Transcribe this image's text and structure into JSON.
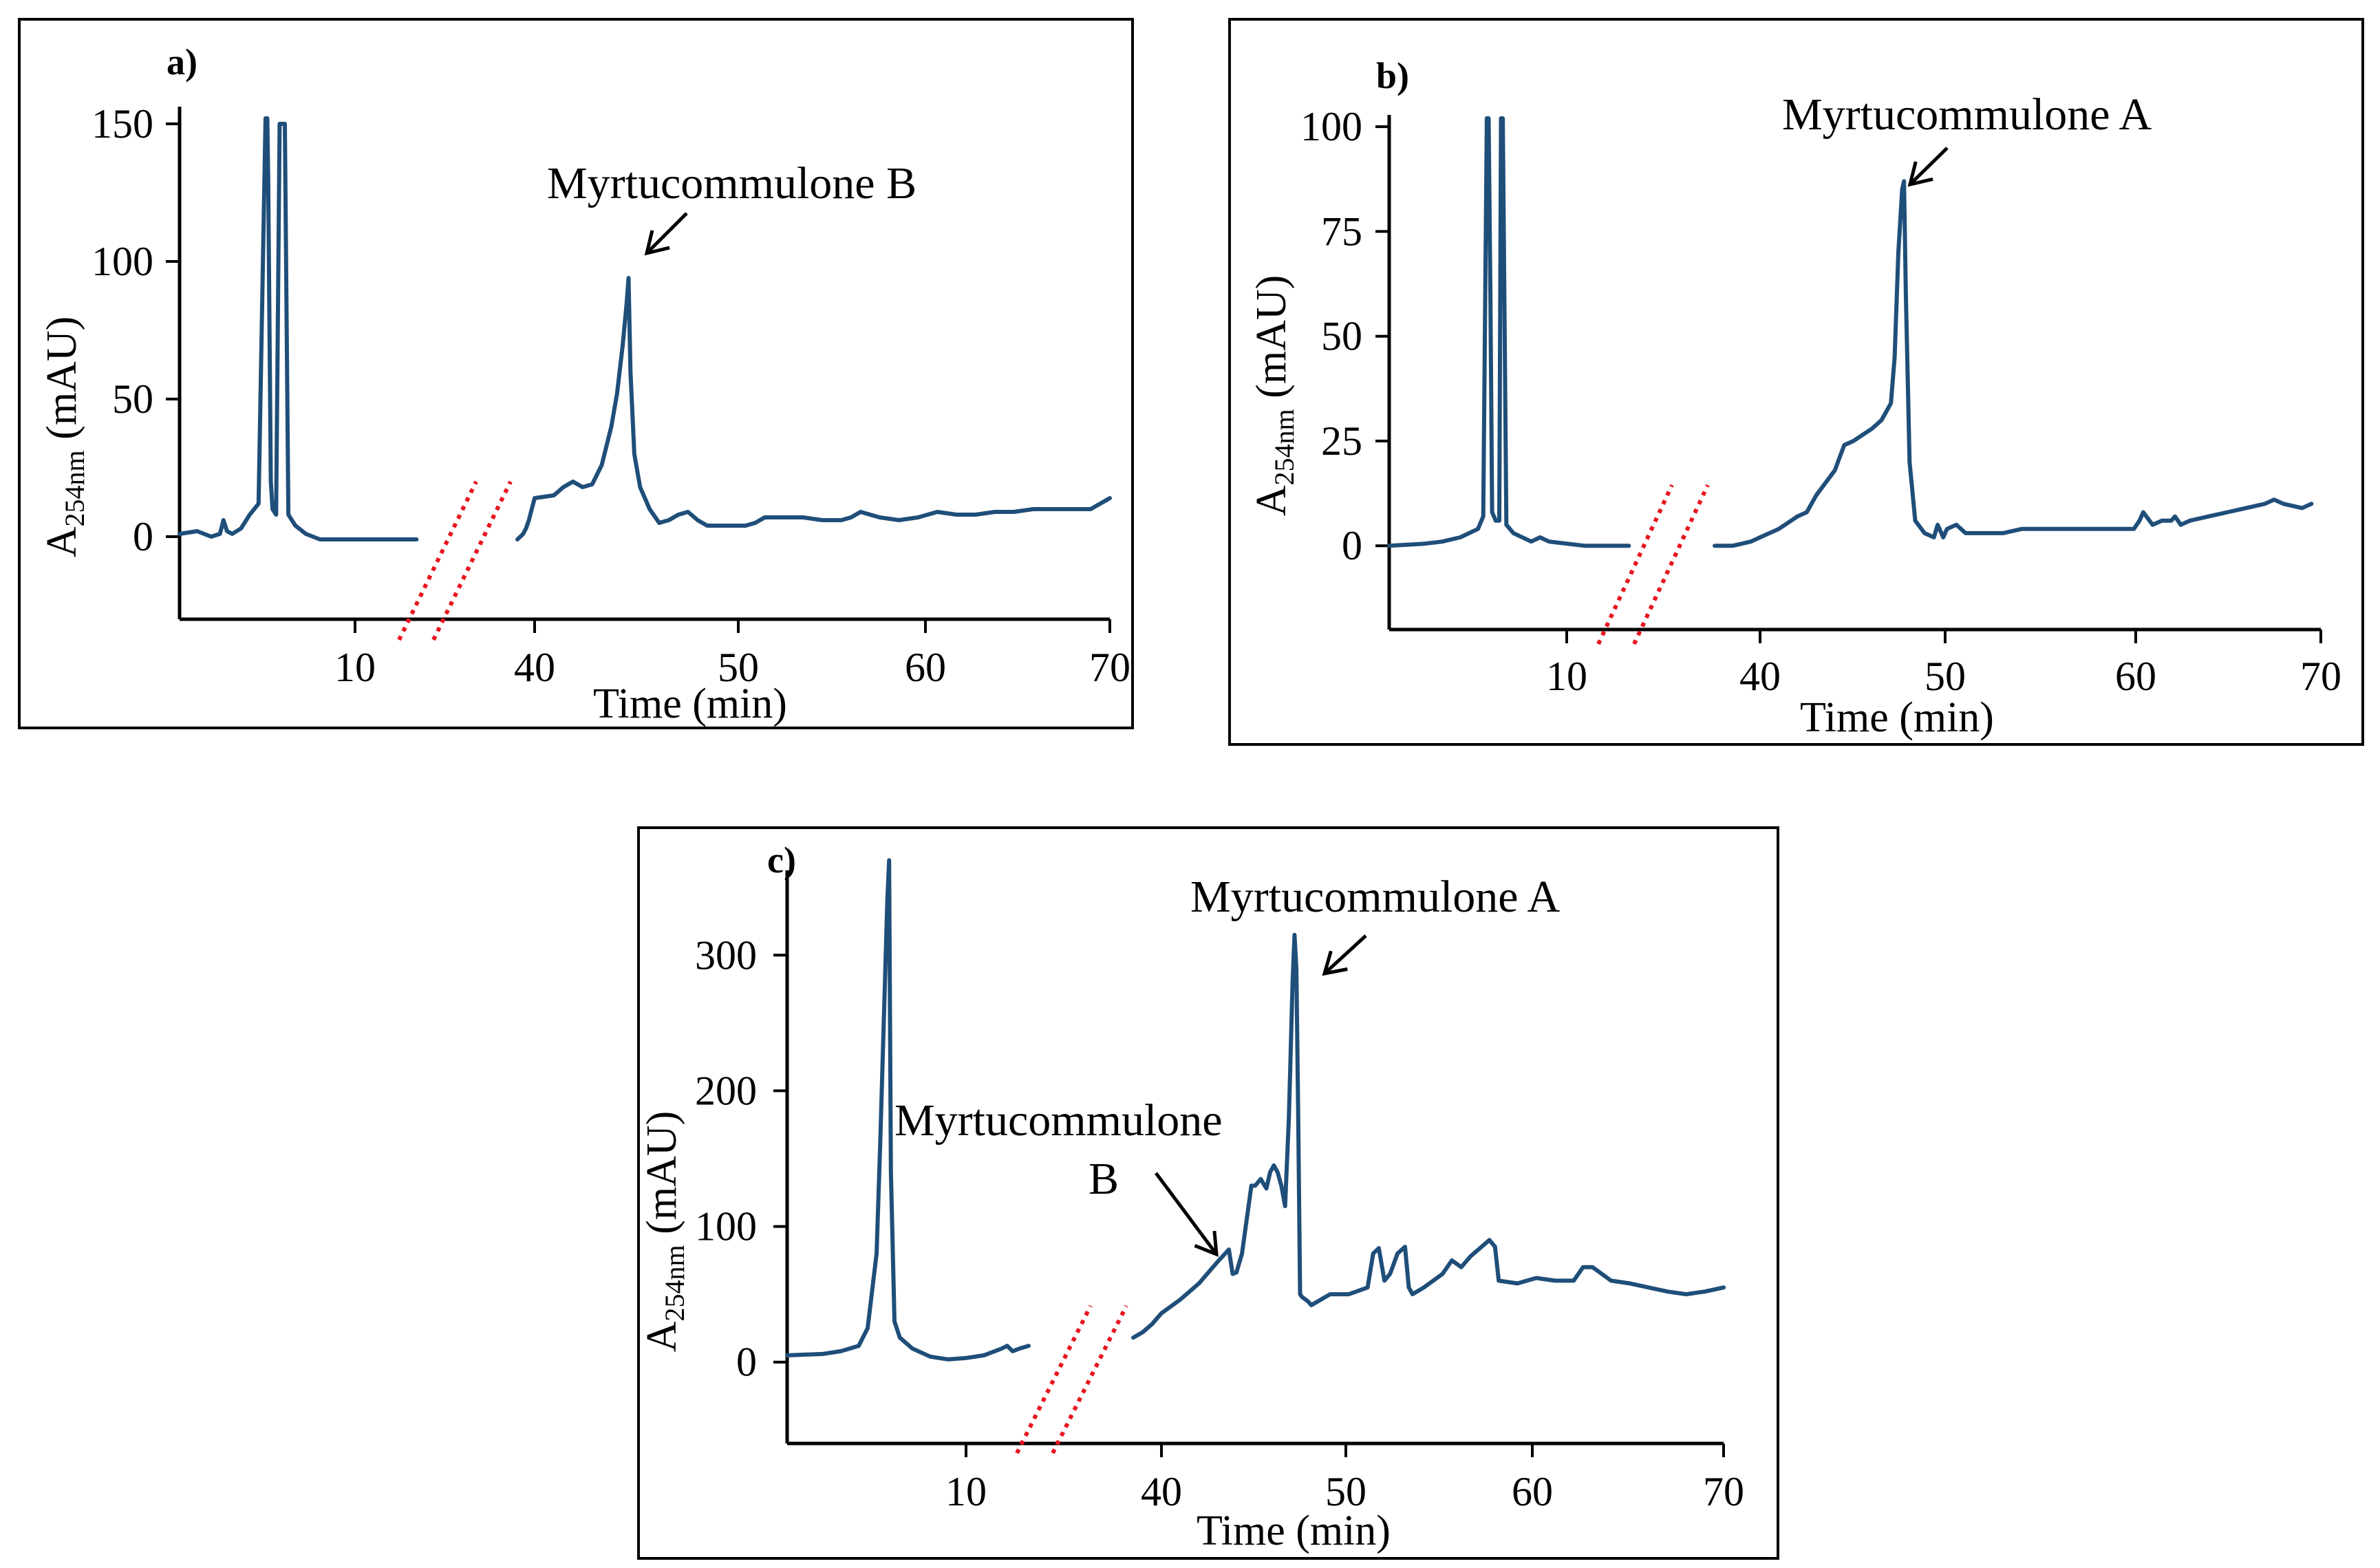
{
  "chart_data": [
    {
      "type": "line",
      "panel_label": "a)",
      "xlabel": "Time (min)",
      "ylabel_prefix": "A",
      "ylabel_sub": "254nm",
      "ylabel_suffix": " (mAU)",
      "x_ticks": [
        "10",
        "40",
        "50",
        "60",
        "70"
      ],
      "y_ticks": [
        0,
        50,
        100,
        150
      ],
      "ylim": [
        -30,
        155
      ],
      "axis_break": "between 10 and 40 min",
      "annotations": [
        {
          "text": "Myrtucommulone B",
          "x": 44.9,
          "y": 94
        }
      ],
      "series": [
        {
          "name": "chromatogram",
          "segment_early": {
            "x": [
              0,
              1,
              1.8,
              2.3,
              2.5,
              2.7,
              3,
              3.5,
              4,
              4.5,
              4.9,
              5.0,
              5.05,
              5.2,
              5.3,
              5.5,
              5.7,
              5.8,
              6.0,
              6.2,
              6.6,
              7.2,
              8,
              9,
              10,
              11,
              12,
              13,
              13.5
            ],
            "y": [
              1,
              2,
              0,
              1,
              6,
              2,
              1,
              3,
              8,
              12,
              152,
              152,
              130,
              20,
              10,
              8,
              150,
              150,
              150,
              8,
              4,
              1,
              -1,
              -1,
              -1,
              -1,
              -1,
              -1,
              -1
            ]
          },
          "segment_late": {
            "x": [
              34,
              35,
              36,
              37,
              38,
              39,
              40,
              41,
              41.5,
              42,
              42.5,
              43,
              43.5,
              44,
              44.3,
              44.6,
              44.8,
              44.9,
              45.0,
              45.2,
              45.5,
              46,
              46.5,
              47,
              47.5,
              48,
              48.5,
              49,
              50,
              51,
              51.5,
              52,
              53,
              54,
              55,
              56,
              56.5,
              57,
              58,
              59,
              60,
              61,
              62,
              63,
              64,
              65,
              66,
              67,
              68,
              69,
              70
            ],
            "y": [
              -1,
              0,
              1,
              3,
              6,
              10,
              14,
              15,
              18,
              20,
              18,
              19,
              26,
              40,
              52,
              70,
              85,
              94,
              60,
              30,
              18,
              10,
              5,
              6,
              8,
              9,
              6,
              4,
              4,
              4,
              5,
              7,
              7,
              7,
              6,
              6,
              7,
              9,
              7,
              6,
              7,
              9,
              8,
              8,
              9,
              9,
              10,
              10,
              10,
              10,
              14
            ]
          }
        }
      ]
    },
    {
      "type": "line",
      "panel_label": "b)",
      "xlabel": "Time (min)",
      "ylabel_prefix": "A",
      "ylabel_sub": "254nm",
      "ylabel_suffix": " (mAU)",
      "x_ticks": [
        "10",
        "40",
        "50",
        "60",
        "70"
      ],
      "y_ticks": [
        0,
        25,
        50,
        75,
        100
      ],
      "ylim": [
        -20,
        102
      ],
      "axis_break": "between 10 and 40 min",
      "annotations": [
        {
          "text": "Myrtucommulone A",
          "x": 47.7,
          "y": 87
        }
      ],
      "series": [
        {
          "name": "chromatogram",
          "segment_early": {
            "x": [
              0,
              2,
              3,
              4,
              5,
              5.3,
              5.5,
              5.6,
              5.7,
              5.8,
              6.0,
              6.2,
              6.3,
              6.4,
              6.6,
              7,
              8,
              8.5,
              9,
              10,
              11,
              12,
              13,
              13.5
            ],
            "y": [
              0,
              0.5,
              1,
              2,
              4,
              7,
              102,
              102,
              60,
              8,
              6,
              6,
              102,
              102,
              5,
              3,
              1,
              2,
              1,
              0.5,
              0,
              0,
              0,
              0
            ]
          },
          "segment_late": {
            "x": [
              35,
              36,
              37,
              38,
              39,
              40,
              41,
              42,
              42.5,
              43,
              44,
              44.5,
              45,
              46,
              46.5,
              47,
              47.2,
              47.4,
              47.6,
              47.7,
              47.8,
              48,
              48.3,
              48.8,
              49.3,
              49.5,
              49.8,
              50,
              50.5,
              51,
              52,
              53,
              54,
              55,
              56,
              57,
              58,
              59,
              60,
              60.3,
              60.5,
              61,
              61.5,
              62,
              62.2,
              62.5,
              63,
              64,
              65,
              66,
              67,
              67.5,
              68,
              69,
              69.5
            ],
            "y": [
              0,
              0,
              0,
              0.5,
              1,
              2,
              4,
              7,
              8,
              12,
              18,
              24,
              25,
              28,
              30,
              34,
              45,
              70,
              85,
              87,
              60,
              20,
              6,
              3,
              2,
              5,
              2,
              4,
              5,
              3,
              3,
              3,
              4,
              4,
              4,
              4,
              4,
              4,
              4,
              6,
              8,
              5,
              6,
              6,
              7,
              5,
              6,
              7,
              8,
              9,
              10,
              11,
              10,
              9,
              10
            ]
          }
        }
      ]
    },
    {
      "type": "line",
      "panel_label": "c)",
      "xlabel": "Time (min)",
      "ylabel_prefix": "A",
      "ylabel_sub": "254nm",
      "ylabel_suffix": " (mAU)",
      "x_ticks": [
        "10",
        "40",
        "50",
        "60",
        "70"
      ],
      "y_ticks": [
        0,
        100,
        200,
        300
      ],
      "ylim": [
        -60,
        360
      ],
      "axis_break": "between 10 and 40 min",
      "annotations": [
        {
          "text": "Myrtucommulone A",
          "x": 47.2,
          "y": 315
        },
        {
          "text": "Myrtucommulone",
          "text2": "B",
          "x": 43.6,
          "y": 83
        }
      ],
      "series": [
        {
          "name": "chromatogram",
          "segment_early": {
            "x": [
              0,
              2,
              3,
              4,
              4.5,
              5,
              5.2,
              5.4,
              5.6,
              5.7,
              5.8,
              6.0,
              6.3,
              7,
              8,
              9,
              10,
              11,
              12,
              12.3,
              12.6,
              13,
              13.5
            ],
            "y": [
              5,
              6,
              8,
              12,
              25,
              80,
              160,
              250,
              340,
              370,
              140,
              30,
              18,
              10,
              4,
              2,
              3,
              5,
              10,
              12,
              8,
              10,
              12
            ]
          },
          "segment_late": {
            "x": [
              37,
              38,
              39,
              40,
              41,
              42,
              42.5,
              43,
              43.4,
              43.6,
              43.8,
              44,
              44.3,
              44.5,
              44.8,
              45,
              45.3,
              45.6,
              45.8,
              46,
              46.2,
              46.4,
              46.6,
              46.8,
              47.0,
              47.1,
              47.2,
              47.3,
              47.4,
              47.5,
              47.8,
              48,
              48.5,
              49,
              50,
              51,
              51.3,
              51.6,
              51.9,
              52.2,
              52.6,
              53,
              53.2,
              53.4,
              54,
              55,
              55.5,
              56,
              56.5,
              57,
              57.5,
              57.8,
              58,
              59,
              60,
              61,
              62,
              62.5,
              63,
              64,
              65,
              66,
              67,
              68,
              69,
              70
            ],
            "y": [
              18,
              22,
              28,
              36,
              46,
              58,
              66,
              74,
              80,
              83,
              65,
              66,
              80,
              100,
              130,
              130,
              135,
              128,
              140,
              145,
              140,
              130,
              115,
              180,
              280,
              315,
              290,
              180,
              50,
              48,
              45,
              42,
              46,
              50,
              50,
              55,
              80,
              84,
              60,
              65,
              80,
              85,
              55,
              50,
              55,
              65,
              75,
              70,
              78,
              84,
              90,
              85,
              60,
              58,
              62,
              60,
              60,
              70,
              70,
              60,
              58,
              55,
              52,
              50,
              52,
              55
            ]
          }
        }
      ]
    }
  ],
  "colors": {
    "trace": "#1f4e79",
    "break_marks": "#e8141e"
  }
}
